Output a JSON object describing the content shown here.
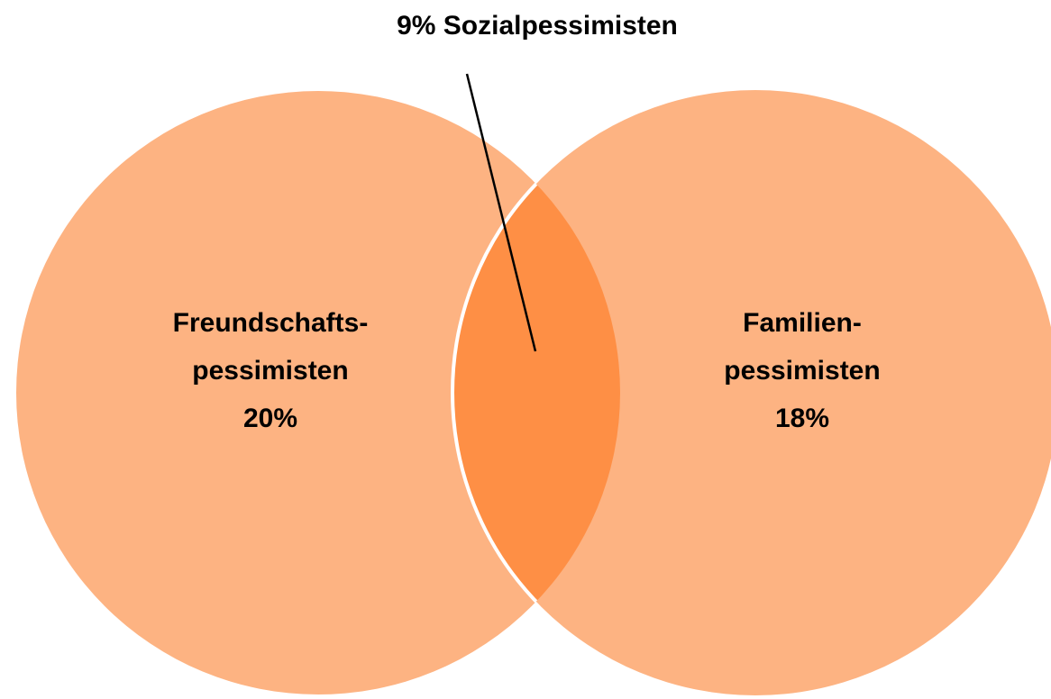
{
  "title": "9% Sozialpessimisten",
  "sets": [
    {
      "label": [
        "Freundschafts-",
        "pessimisten"
      ],
      "share": "20%"
    },
    {
      "label": [
        "Familien-",
        "pessimisten"
      ],
      "share": "18%"
    }
  ]
}
